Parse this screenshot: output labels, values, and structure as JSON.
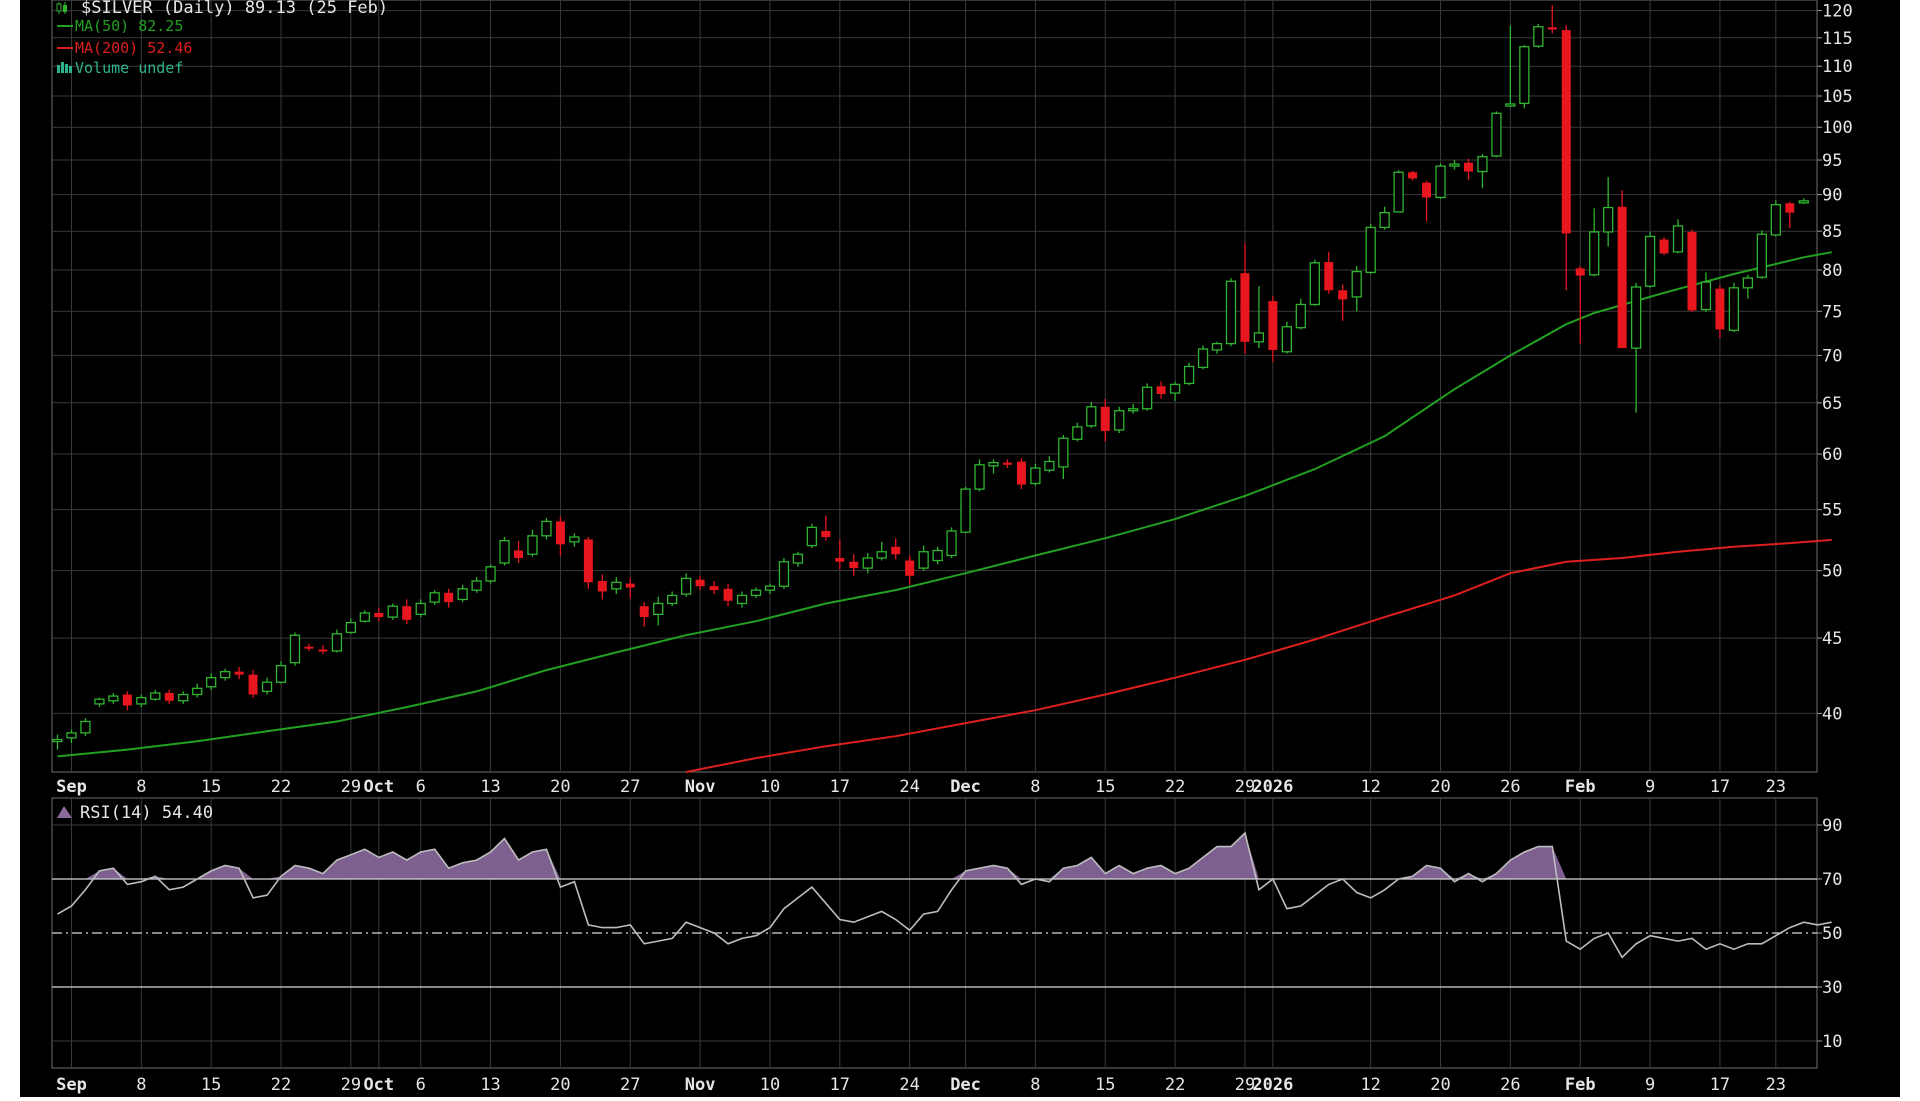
{
  "chart_data": {
    "type": "candlestick",
    "symbol": "$SILVER",
    "interval": "(Daily)",
    "last_close": "89.13",
    "last_date": "(25 Feb)",
    "price_scale": "log",
    "price_ylim": [
      36.5,
      122
    ],
    "price_ticks": [
      40,
      45,
      50,
      55,
      60,
      65,
      70,
      75,
      80,
      85,
      90,
      95,
      100,
      105,
      110,
      115,
      120
    ],
    "x_axis_labels": [
      {
        "day": 1,
        "label": "Sep",
        "bold": true
      },
      {
        "day": 6,
        "label": "8",
        "bold": false
      },
      {
        "day": 11,
        "label": "15",
        "bold": false
      },
      {
        "day": 16,
        "label": "22",
        "bold": false
      },
      {
        "day": 21,
        "label": "29",
        "bold": false
      },
      {
        "day": 23,
        "label": "Oct",
        "bold": true
      },
      {
        "day": 26,
        "label": "6",
        "bold": false
      },
      {
        "day": 31,
        "label": "13",
        "bold": false
      },
      {
        "day": 36,
        "label": "20",
        "bold": false
      },
      {
        "day": 41,
        "label": "27",
        "bold": false
      },
      {
        "day": 46,
        "label": "Nov",
        "bold": true
      },
      {
        "day": 51,
        "label": "10",
        "bold": false
      },
      {
        "day": 56,
        "label": "17",
        "bold": false
      },
      {
        "day": 61,
        "label": "24",
        "bold": false
      },
      {
        "day": 65,
        "label": "Dec",
        "bold": true
      },
      {
        "day": 70,
        "label": "8",
        "bold": false
      },
      {
        "day": 75,
        "label": "15",
        "bold": false
      },
      {
        "day": 80,
        "label": "22",
        "bold": false
      },
      {
        "day": 85,
        "label": "29",
        "bold": false
      },
      {
        "day": 87,
        "label": "2026",
        "bold": true
      },
      {
        "day": 94,
        "label": "12",
        "bold": false
      },
      {
        "day": 99,
        "label": "20",
        "bold": false
      },
      {
        "day": 104,
        "label": "26",
        "bold": false
      },
      {
        "day": 109,
        "label": "Feb",
        "bold": true
      },
      {
        "day": 114,
        "label": "9",
        "bold": false
      },
      {
        "day": 119,
        "label": "17",
        "bold": false
      },
      {
        "day": 123,
        "label": "23",
        "bold": false
      }
    ],
    "candles": [
      {
        "o": 38.3,
        "h": 38.7,
        "l": 37.8,
        "c": 38.4
      },
      {
        "o": 38.5,
        "h": 39.0,
        "l": 38.2,
        "c": 38.8
      },
      {
        "o": 38.8,
        "h": 39.7,
        "l": 38.6,
        "c": 39.5
      },
      {
        "o": 40.6,
        "h": 41.0,
        "l": 40.4,
        "c": 40.9
      },
      {
        "o": 40.8,
        "h": 41.3,
        "l": 40.6,
        "c": 41.1
      },
      {
        "o": 41.2,
        "h": 41.4,
        "l": 40.2,
        "c": 40.5
      },
      {
        "o": 40.6,
        "h": 41.2,
        "l": 40.4,
        "c": 41.0
      },
      {
        "o": 40.9,
        "h": 41.5,
        "l": 40.8,
        "c": 41.3
      },
      {
        "o": 41.3,
        "h": 41.5,
        "l": 40.6,
        "c": 40.8
      },
      {
        "o": 40.8,
        "h": 41.4,
        "l": 40.6,
        "c": 41.2
      },
      {
        "o": 41.2,
        "h": 41.9,
        "l": 41.0,
        "c": 41.6
      },
      {
        "o": 41.7,
        "h": 42.6,
        "l": 41.5,
        "c": 42.3
      },
      {
        "o": 42.3,
        "h": 42.9,
        "l": 42.1,
        "c": 42.7
      },
      {
        "o": 42.7,
        "h": 43.0,
        "l": 42.2,
        "c": 42.5
      },
      {
        "o": 42.5,
        "h": 42.8,
        "l": 41.0,
        "c": 41.2
      },
      {
        "o": 41.4,
        "h": 42.3,
        "l": 41.2,
        "c": 42.0
      },
      {
        "o": 42.0,
        "h": 43.4,
        "l": 41.9,
        "c": 43.1
      },
      {
        "o": 43.3,
        "h": 45.4,
        "l": 43.1,
        "c": 45.2
      },
      {
        "o": 44.4,
        "h": 44.6,
        "l": 44.1,
        "c": 44.3
      },
      {
        "o": 44.2,
        "h": 44.5,
        "l": 43.9,
        "c": 44.1
      },
      {
        "o": 44.1,
        "h": 45.6,
        "l": 44.0,
        "c": 45.3
      },
      {
        "o": 45.4,
        "h": 46.4,
        "l": 45.3,
        "c": 46.1
      },
      {
        "o": 46.2,
        "h": 47.0,
        "l": 46.1,
        "c": 46.8
      },
      {
        "o": 46.8,
        "h": 47.2,
        "l": 46.2,
        "c": 46.5
      },
      {
        "o": 46.5,
        "h": 47.5,
        "l": 46.3,
        "c": 47.3
      },
      {
        "o": 47.3,
        "h": 47.8,
        "l": 46.0,
        "c": 46.3
      },
      {
        "o": 46.7,
        "h": 47.8,
        "l": 46.5,
        "c": 47.5
      },
      {
        "o": 47.6,
        "h": 48.5,
        "l": 47.4,
        "c": 48.3
      },
      {
        "o": 48.3,
        "h": 48.6,
        "l": 47.2,
        "c": 47.6
      },
      {
        "o": 47.8,
        "h": 48.9,
        "l": 47.6,
        "c": 48.6
      },
      {
        "o": 48.5,
        "h": 49.5,
        "l": 48.3,
        "c": 49.2
      },
      {
        "o": 49.2,
        "h": 50.5,
        "l": 49.0,
        "c": 50.3
      },
      {
        "o": 50.6,
        "h": 52.7,
        "l": 50.4,
        "c": 52.4
      },
      {
        "o": 51.6,
        "h": 52.4,
        "l": 50.6,
        "c": 51.0
      },
      {
        "o": 51.3,
        "h": 53.3,
        "l": 51.1,
        "c": 52.8
      },
      {
        "o": 52.8,
        "h": 54.3,
        "l": 52.5,
        "c": 54.0
      },
      {
        "o": 54.0,
        "h": 54.4,
        "l": 51.2,
        "c": 52.1
      },
      {
        "o": 52.3,
        "h": 53.0,
        "l": 51.9,
        "c": 52.7
      },
      {
        "o": 52.5,
        "h": 52.7,
        "l": 48.6,
        "c": 49.1
      },
      {
        "o": 49.2,
        "h": 49.7,
        "l": 47.8,
        "c": 48.4
      },
      {
        "o": 48.6,
        "h": 49.5,
        "l": 48.2,
        "c": 49.1
      },
      {
        "o": 49.0,
        "h": 49.4,
        "l": 47.9,
        "c": 48.7
      },
      {
        "o": 47.3,
        "h": 47.6,
        "l": 45.8,
        "c": 46.5
      },
      {
        "o": 46.7,
        "h": 48.0,
        "l": 45.9,
        "c": 47.5
      },
      {
        "o": 47.5,
        "h": 48.4,
        "l": 47.3,
        "c": 48.1
      },
      {
        "o": 48.2,
        "h": 49.8,
        "l": 48.0,
        "c": 49.4
      },
      {
        "o": 49.3,
        "h": 49.6,
        "l": 48.5,
        "c": 48.8
      },
      {
        "o": 48.8,
        "h": 49.2,
        "l": 48.2,
        "c": 48.5
      },
      {
        "o": 48.6,
        "h": 49.0,
        "l": 47.3,
        "c": 47.7
      },
      {
        "o": 47.5,
        "h": 48.4,
        "l": 47.2,
        "c": 48.1
      },
      {
        "o": 48.1,
        "h": 48.7,
        "l": 47.9,
        "c": 48.5
      },
      {
        "o": 48.5,
        "h": 49.0,
        "l": 48.2,
        "c": 48.8
      },
      {
        "o": 48.8,
        "h": 51.0,
        "l": 48.6,
        "c": 50.7
      },
      {
        "o": 50.6,
        "h": 51.5,
        "l": 50.3,
        "c": 51.3
      },
      {
        "o": 52.0,
        "h": 53.8,
        "l": 51.8,
        "c": 53.5
      },
      {
        "o": 53.2,
        "h": 54.5,
        "l": 52.4,
        "c": 52.7
      },
      {
        "o": 51.0,
        "h": 52.5,
        "l": 50.1,
        "c": 50.7
      },
      {
        "o": 50.7,
        "h": 51.3,
        "l": 49.6,
        "c": 50.2
      },
      {
        "o": 50.2,
        "h": 51.4,
        "l": 49.8,
        "c": 51.0
      },
      {
        "o": 51.0,
        "h": 52.3,
        "l": 50.8,
        "c": 51.5
      },
      {
        "o": 51.9,
        "h": 52.6,
        "l": 50.9,
        "c": 51.3
      },
      {
        "o": 50.8,
        "h": 51.2,
        "l": 48.9,
        "c": 49.6
      },
      {
        "o": 50.2,
        "h": 52.0,
        "l": 50.0,
        "c": 51.5
      },
      {
        "o": 50.8,
        "h": 51.9,
        "l": 50.5,
        "c": 51.6
      },
      {
        "o": 51.2,
        "h": 53.5,
        "l": 51.0,
        "c": 53.2
      },
      {
        "o": 53.1,
        "h": 57.0,
        "l": 53.0,
        "c": 56.8
      },
      {
        "o": 56.8,
        "h": 59.5,
        "l": 56.6,
        "c": 59.0
      },
      {
        "o": 58.9,
        "h": 59.5,
        "l": 58.2,
        "c": 59.2
      },
      {
        "o": 59.2,
        "h": 59.5,
        "l": 58.7,
        "c": 59.0
      },
      {
        "o": 59.3,
        "h": 59.6,
        "l": 56.8,
        "c": 57.2
      },
      {
        "o": 57.3,
        "h": 59.1,
        "l": 57.1,
        "c": 58.7
      },
      {
        "o": 58.5,
        "h": 59.8,
        "l": 58.3,
        "c": 59.3
      },
      {
        "o": 58.8,
        "h": 61.8,
        "l": 57.7,
        "c": 61.5
      },
      {
        "o": 61.4,
        "h": 63.0,
        "l": 61.2,
        "c": 62.6
      },
      {
        "o": 62.7,
        "h": 65.1,
        "l": 62.5,
        "c": 64.6
      },
      {
        "o": 64.6,
        "h": 65.4,
        "l": 61.2,
        "c": 62.2
      },
      {
        "o": 62.3,
        "h": 64.6,
        "l": 62.0,
        "c": 64.2
      },
      {
        "o": 64.3,
        "h": 64.9,
        "l": 63.9,
        "c": 64.4
      },
      {
        "o": 64.4,
        "h": 67.0,
        "l": 64.2,
        "c": 66.6
      },
      {
        "o": 66.7,
        "h": 67.2,
        "l": 65.4,
        "c": 65.9
      },
      {
        "o": 66.0,
        "h": 67.2,
        "l": 65.2,
        "c": 66.9
      },
      {
        "o": 67.0,
        "h": 69.2,
        "l": 66.8,
        "c": 68.8
      },
      {
        "o": 68.7,
        "h": 71.1,
        "l": 68.5,
        "c": 70.7
      },
      {
        "o": 70.6,
        "h": 71.5,
        "l": 70.2,
        "c": 71.3
      },
      {
        "o": 71.3,
        "h": 79.0,
        "l": 71.0,
        "c": 78.6
      },
      {
        "o": 79.6,
        "h": 83.4,
        "l": 70.2,
        "c": 71.5
      },
      {
        "o": 71.5,
        "h": 78.0,
        "l": 70.8,
        "c": 72.5
      },
      {
        "o": 76.2,
        "h": 76.8,
        "l": 69.3,
        "c": 70.6
      },
      {
        "o": 70.4,
        "h": 73.8,
        "l": 70.2,
        "c": 73.2
      },
      {
        "o": 73.1,
        "h": 76.5,
        "l": 72.9,
        "c": 75.8
      },
      {
        "o": 75.8,
        "h": 81.3,
        "l": 75.6,
        "c": 80.9
      },
      {
        "o": 81.0,
        "h": 82.3,
        "l": 77.1,
        "c": 77.5
      },
      {
        "o": 77.5,
        "h": 78.2,
        "l": 73.9,
        "c": 76.4
      },
      {
        "o": 76.7,
        "h": 80.5,
        "l": 75.0,
        "c": 79.8
      },
      {
        "o": 79.7,
        "h": 86.0,
        "l": 79.5,
        "c": 85.5
      },
      {
        "o": 85.5,
        "h": 88.3,
        "l": 85.2,
        "c": 87.5
      },
      {
        "o": 87.6,
        "h": 93.5,
        "l": 87.5,
        "c": 93.2
      },
      {
        "o": 93.2,
        "h": 93.4,
        "l": 92.0,
        "c": 92.3
      },
      {
        "o": 91.7,
        "h": 92.0,
        "l": 86.3,
        "c": 89.6
      },
      {
        "o": 89.6,
        "h": 94.5,
        "l": 89.4,
        "c": 94.1
      },
      {
        "o": 94.1,
        "h": 95.0,
        "l": 93.6,
        "c": 94.4
      },
      {
        "o": 94.6,
        "h": 95.2,
        "l": 92.1,
        "c": 93.3
      },
      {
        "o": 93.3,
        "h": 95.9,
        "l": 90.9,
        "c": 95.5
      },
      {
        "o": 95.6,
        "h": 102.5,
        "l": 95.4,
        "c": 102.2
      },
      {
        "o": 103.6,
        "h": 117.2,
        "l": 103.2,
        "c": 103.7
      },
      {
        "o": 103.8,
        "h": 113.7,
        "l": 103.0,
        "c": 113.4
      },
      {
        "o": 113.5,
        "h": 117.5,
        "l": 113.2,
        "c": 117.0
      },
      {
        "o": 116.9,
        "h": 121.0,
        "l": 115.8,
        "c": 116.5
      },
      {
        "o": 116.4,
        "h": 117.3,
        "l": 77.5,
        "c": 84.7
      },
      {
        "o": 80.2,
        "h": 80.5,
        "l": 71.3,
        "c": 79.3
      },
      {
        "o": 79.4,
        "h": 88.1,
        "l": 79.2,
        "c": 84.9
      },
      {
        "o": 84.9,
        "h": 92.5,
        "l": 83.0,
        "c": 88.2
      },
      {
        "o": 88.3,
        "h": 90.6,
        "l": 70.9,
        "c": 70.8
      },
      {
        "o": 70.8,
        "h": 78.4,
        "l": 64.0,
        "c": 77.9
      },
      {
        "o": 78.0,
        "h": 84.9,
        "l": 77.8,
        "c": 84.3
      },
      {
        "o": 83.9,
        "h": 84.2,
        "l": 81.9,
        "c": 82.1
      },
      {
        "o": 82.3,
        "h": 86.6,
        "l": 82.1,
        "c": 85.7
      },
      {
        "o": 84.9,
        "h": 85.2,
        "l": 74.9,
        "c": 75.1
      },
      {
        "o": 75.2,
        "h": 79.7,
        "l": 74.9,
        "c": 78.5
      },
      {
        "o": 77.7,
        "h": 78.1,
        "l": 71.9,
        "c": 72.9
      },
      {
        "o": 72.8,
        "h": 78.4,
        "l": 72.6,
        "c": 77.8
      },
      {
        "o": 77.8,
        "h": 79.4,
        "l": 76.5,
        "c": 79.0
      },
      {
        "o": 79.1,
        "h": 85.1,
        "l": 78.9,
        "c": 84.6
      },
      {
        "o": 84.5,
        "h": 89.2,
        "l": 84.3,
        "c": 88.6
      },
      {
        "o": 88.8,
        "h": 89.0,
        "l": 85.4,
        "c": 87.5
      },
      {
        "o": 89.0,
        "h": 89.5,
        "l": 88.7,
        "c": 89.13
      }
    ],
    "series": [
      {
        "name": "MA(50)",
        "label_value": "82.25",
        "color": "#22a022",
        "values": [
          [
            0,
            37.4
          ],
          [
            5,
            37.8
          ],
          [
            10,
            38.3
          ],
          [
            15,
            38.9
          ],
          [
            20,
            39.5
          ],
          [
            25,
            40.4
          ],
          [
            30,
            41.4
          ],
          [
            35,
            42.8
          ],
          [
            40,
            44.0
          ],
          [
            45,
            45.2
          ],
          [
            50,
            46.2
          ],
          [
            55,
            47.5
          ],
          [
            60,
            48.5
          ],
          [
            65,
            49.8
          ],
          [
            70,
            51.2
          ],
          [
            75,
            52.6
          ],
          [
            80,
            54.2
          ],
          [
            85,
            56.2
          ],
          [
            90,
            58.6
          ],
          [
            95,
            61.7
          ],
          [
            100,
            66.4
          ],
          [
            104,
            70.0
          ],
          [
            108,
            73.5
          ],
          [
            110,
            74.8
          ],
          [
            115,
            77.2
          ],
          [
            120,
            79.5
          ],
          [
            125,
            81.6
          ],
          [
            127,
            82.25
          ]
        ]
      },
      {
        "name": "MA(200)",
        "label_value": "52.46",
        "color": "#dd1f1f",
        "values": [
          [
            45,
            36.5
          ],
          [
            50,
            37.3
          ],
          [
            55,
            38.0
          ],
          [
            60,
            38.6
          ],
          [
            65,
            39.4
          ],
          [
            70,
            40.2
          ],
          [
            75,
            41.2
          ],
          [
            80,
            42.3
          ],
          [
            85,
            43.5
          ],
          [
            90,
            44.9
          ],
          [
            95,
            46.5
          ],
          [
            100,
            48.1
          ],
          [
            104,
            49.8
          ],
          [
            108,
            50.7
          ],
          [
            112,
            51.0
          ],
          [
            116,
            51.5
          ],
          [
            120,
            51.9
          ],
          [
            124,
            52.2
          ],
          [
            127,
            52.46
          ]
        ]
      },
      {
        "name": "Volume",
        "label_value": "undef",
        "color": "#2db38c",
        "values": []
      }
    ],
    "rsi": {
      "name": "RSI(14)",
      "last": "54.40",
      "ylim": [
        0,
        100
      ],
      "ticks": [
        10,
        30,
        50,
        70,
        90
      ],
      "levels": [
        30,
        50,
        70
      ],
      "values": [
        57,
        60,
        66,
        73,
        74,
        68,
        69,
        71,
        66,
        67,
        70,
        73,
        75,
        74,
        63,
        64,
        71,
        75,
        74,
        72,
        77,
        79,
        81,
        78,
        80,
        77,
        80,
        81,
        74,
        76,
        77,
        80,
        85,
        77,
        80,
        81,
        67,
        69,
        53,
        52,
        52,
        53,
        46,
        47,
        48,
        54,
        52,
        50,
        46,
        48,
        49,
        52,
        59,
        63,
        67,
        61,
        55,
        54,
        56,
        58,
        55,
        51,
        57,
        58,
        66,
        73,
        74,
        75,
        74,
        68,
        70,
        69,
        74,
        75,
        78,
        72,
        75,
        72,
        74,
        75,
        72,
        74,
        78,
        82,
        82,
        87,
        66,
        70,
        59,
        60,
        64,
        68,
        70,
        65,
        63,
        66,
        70,
        71,
        75,
        74,
        69,
        72,
        69,
        72,
        77,
        80,
        82,
        82,
        47,
        44,
        48,
        50,
        41,
        46,
        49,
        48,
        47,
        48,
        44,
        46,
        44,
        46,
        46,
        49,
        52,
        54,
        53,
        54
      ]
    }
  }
}
